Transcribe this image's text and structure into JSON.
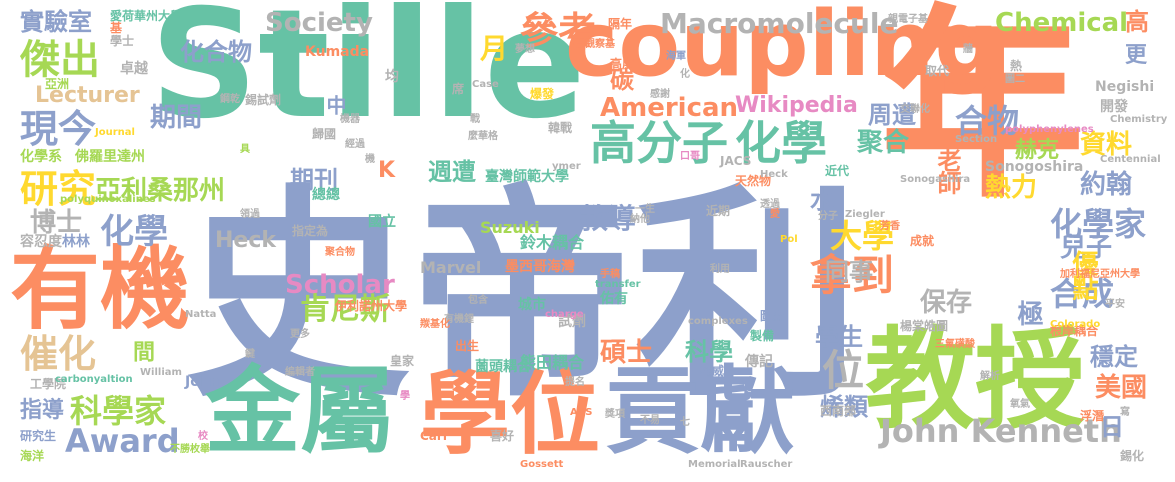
{
  "palette": {
    "green": "#66c2a5",
    "orange": "#fc8d62",
    "blue": "#8da0cb",
    "pink": "#e78ac3",
    "lime": "#a6d854",
    "yellow": "#ffd92f",
    "tan": "#e5c494",
    "gray": "#b3b3b3"
  },
  "words": [
    "Stille",
    "史帝利",
    "年",
    "coupling",
    "教授",
    "金屬",
    "學位",
    "貢獻",
    "有機",
    "高分子",
    "化學",
    "參考",
    "傑出",
    "現今",
    "研究",
    "亞利桑那州",
    "化學",
    "博士",
    "催化",
    "科學家",
    "Award",
    "指導",
    "Macromolecule",
    "Society",
    "實驗室",
    "化合物",
    "Chemical",
    "American",
    "Wikipedia",
    "Lecturer",
    "期間",
    "中",
    "K",
    "期刊",
    "週遭",
    "肯尼斯",
    "Scholar",
    "間",
    "合物",
    "資料",
    "約翰",
    "化學家",
    "兒子",
    "拿到",
    "合成",
    "大學",
    "優點",
    "保存",
    "John Kenneth",
    "碩士",
    "科學",
    "學生",
    "烯類",
    "美國",
    "穩定",
    "極",
    "周遭",
    "聚合",
    "熱力",
    "老師",
    "水",
    "位",
    "教導",
    "同事",
    "月",
    "碳",
    "高",
    "更",
    "日",
    "赫克",
    "Sonogoshira",
    "Negishi",
    "開發",
    "取代",
    "熱",
    "亞洲",
    "卓越",
    "學士",
    "愛荷華州大學",
    "化學系",
    "佛羅里達州",
    "研究生",
    "海洋",
    "工學院",
    "容忍度",
    "林林",
    "Heck",
    "Suzuki",
    "Marvel",
    "墨西哥海灣",
    "鈴木耦合",
    "臺灣師範大學",
    "熊田耦合",
    "國立",
    "伊利諾州大學",
    "城市",
    "Kumada",
    "John",
    "Carl",
    "喜好",
    "出生",
    "皇家",
    "薗頭耦合",
    "佑有",
    "試劑",
    "圖森",
    "製備",
    "傳記",
    "權威",
    "西南部",
    "根岸耦合",
    "楊棠皓圖",
    "平安",
    "浮潛",
    "氧氣",
    "加利福尼亞州大學",
    "三氟磺酸",
    "錫化",
    "寫",
    "化",
    "戰",
    "隔年",
    "觀察基",
    "高度",
    "海軍",
    "爆發",
    "韓戰",
    "席",
    "歸國",
    "指定為",
    "近期",
    "天然物",
    "近代",
    "總總",
    "感謝",
    "JACS",
    "Case",
    "交聯化",
    "Section",
    "Chemistry",
    "polyphenylenes",
    "Centennial",
    "polyquinoxalines",
    "carbonyaltion",
    "complexes",
    "charge",
    "transfer",
    "Memorial",
    "Gossett",
    "Rauscher",
    "Colorado",
    "Pol",
    "Ziegler",
    "Natta",
    "William",
    "Journal",
    "ymer",
    "ACS",
    "聚合物",
    "分子",
    "成就",
    "提名",
    "手稿",
    "一生",
    "利用",
    "愛",
    "納他",
    "夢想",
    "領過",
    "獎項",
    "編輯者",
    "學",
    "校",
    "七",
    "不易",
    "包含",
    "有機鋰",
    "華格",
    "均",
    "口哥",
    "透過",
    "芳香",
    "羰基化",
    "鍵",
    "麼",
    "Heck",
    "不勝枚舉",
    "親電子基",
    "圖二",
    "解析",
    "鋼乾",
    "錫試劑",
    "機器",
    "具",
    "Sonogashira",
    "經過",
    "更多",
    "基",
    "機",
    "牆"
  ]
}
